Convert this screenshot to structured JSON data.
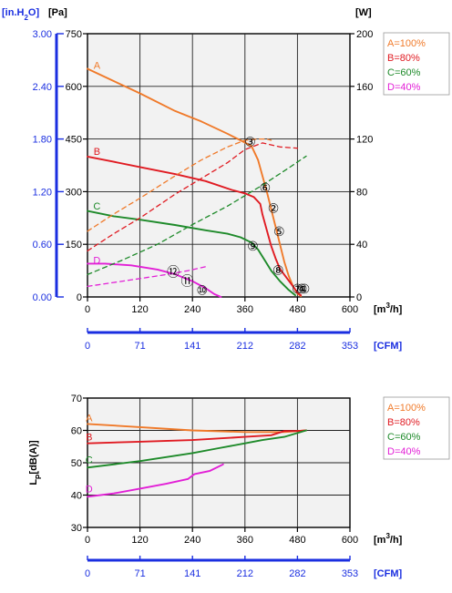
{
  "chart_data": [
    {
      "type": "line",
      "title": "",
      "left_axis_label": "[in.H2O]",
      "left_axis_unit": "[Pa]",
      "right_axis_label": "[W]",
      "x_unit": "[m3/h]",
      "x2_unit": "[CFM]",
      "xlim": [
        0,
        600
      ],
      "ylim_pa": [
        0,
        750
      ],
      "ylim_w": [
        0,
        200
      ],
      "ylim_inh2o": [
        0,
        3.0
      ],
      "x_ticks": [
        "0",
        "120",
        "240",
        "360",
        "480",
        "600"
      ],
      "pa_ticks": [
        "0",
        "150",
        "300",
        "450",
        "600",
        "750"
      ],
      "w_ticks": [
        "0",
        "40",
        "80",
        "120",
        "160",
        "200"
      ],
      "inh2o_ticks": [
        "0.00",
        "0.60",
        "1.20",
        "1.80",
        "2.40",
        "3.00"
      ],
      "cfm_ticks": [
        "0",
        "71",
        "141",
        "212",
        "282",
        "353"
      ],
      "legend": [
        "A=100%",
        "B=80%",
        "C=60%",
        "D=40%"
      ],
      "legend_position": "right",
      "grid": true,
      "series": [
        {
          "name": "A",
          "color": "#f07a2a",
          "kind": "pressure",
          "points": [
            [
              0,
              650
            ],
            [
              60,
              615
            ],
            [
              120,
              580
            ],
            [
              200,
              530
            ],
            [
              260,
              500
            ],
            [
              320,
              465
            ],
            [
              360,
              440
            ],
            [
              375,
              430
            ],
            [
              390,
              390
            ],
            [
              400,
              345
            ],
            [
              410,
              300
            ],
            [
              420,
              250
            ],
            [
              430,
              200
            ],
            [
              440,
              150
            ],
            [
              450,
              100
            ],
            [
              460,
              60
            ],
            [
              470,
              30
            ],
            [
              480,
              10
            ],
            [
              488,
              2
            ]
          ]
        },
        {
          "name": "B",
          "color": "#e01b22",
          "kind": "pressure",
          "points": [
            [
              0,
              400
            ],
            [
              60,
              385
            ],
            [
              120,
              370
            ],
            [
              200,
              350
            ],
            [
              270,
              330
            ],
            [
              330,
              305
            ],
            [
              360,
              295
            ],
            [
              380,
              285
            ],
            [
              395,
              265
            ],
            [
              400,
              235
            ],
            [
              410,
              190
            ],
            [
              420,
              145
            ],
            [
              430,
              110
            ],
            [
              440,
              80
            ],
            [
              455,
              55
            ],
            [
              470,
              30
            ],
            [
              480,
              12
            ],
            [
              488,
              5
            ]
          ]
        },
        {
          "name": "C",
          "color": "#1e8a2a",
          "kind": "pressure",
          "points": [
            [
              0,
              245
            ],
            [
              60,
              230
            ],
            [
              120,
              220
            ],
            [
              200,
              205
            ],
            [
              270,
              190
            ],
            [
              320,
              180
            ],
            [
              350,
              170
            ],
            [
              375,
              155
            ],
            [
              390,
              135
            ],
            [
              405,
              105
            ],
            [
              420,
              75
            ],
            [
              440,
              45
            ],
            [
              460,
              20
            ],
            [
              475,
              5
            ]
          ]
        },
        {
          "name": "D",
          "color": "#e21fd6",
          "kind": "pressure",
          "points": [
            [
              0,
              95
            ],
            [
              40,
              95
            ],
            [
              100,
              90
            ],
            [
              160,
              78
            ],
            [
              200,
              65
            ],
            [
              240,
              45
            ],
            [
              270,
              25
            ],
            [
              290,
              8
            ],
            [
              305,
              0
            ]
          ]
        },
        {
          "name": "A",
          "color": "#f07a2a",
          "kind": "power",
          "points": [
            [
              0,
              50
            ],
            [
              60,
              63
            ],
            [
              120,
              75
            ],
            [
              200,
              92
            ],
            [
              260,
              104
            ],
            [
              320,
              114
            ],
            [
              360,
              119
            ],
            [
              390,
              120
            ],
            [
              410,
              120
            ],
            [
              420,
              119
            ]
          ]
        },
        {
          "name": "B",
          "color": "#e01b22",
          "kind": "power",
          "points": [
            [
              0,
              35
            ],
            [
              60,
              48
            ],
            [
              120,
              60
            ],
            [
              200,
              78
            ],
            [
              270,
              92
            ],
            [
              320,
              102
            ],
            [
              360,
              112
            ],
            [
              400,
              117
            ],
            [
              440,
              114
            ],
            [
              480,
              113
            ]
          ]
        },
        {
          "name": "C",
          "color": "#1e8a2a",
          "kind": "power",
          "points": [
            [
              0,
              17
            ],
            [
              80,
              28
            ],
            [
              160,
              40
            ],
            [
              240,
              55
            ],
            [
              320,
              69
            ],
            [
              400,
              85
            ],
            [
              460,
              98
            ],
            [
              500,
              107
            ]
          ]
        },
        {
          "name": "D",
          "color": "#e21fd6",
          "kind": "power",
          "points": [
            [
              0,
              8
            ],
            [
              60,
              11
            ],
            [
              120,
              14
            ],
            [
              180,
              17
            ],
            [
              230,
              20
            ],
            [
              270,
              23
            ]
          ]
        }
      ],
      "curve_labels": [
        {
          "text": "A",
          "x": 30,
          "y": 660,
          "color": "#f07a2a"
        },
        {
          "text": "B",
          "x": 30,
          "y": 415,
          "color": "#e01b22"
        },
        {
          "text": "C",
          "x": 30,
          "y": 260,
          "color": "#1e8a2a"
        },
        {
          "text": "D",
          "x": 30,
          "y": 105,
          "color": "#e21fd6"
        }
      ],
      "point_markers": [
        {
          "text": "③",
          "x": 372,
          "y": 442
        },
        {
          "text": "⑥",
          "x": 406,
          "y": 312
        },
        {
          "text": "②",
          "x": 425,
          "y": 253
        },
        {
          "text": "⑤",
          "x": 438,
          "y": 187
        },
        {
          "text": "⑨",
          "x": 378,
          "y": 145
        },
        {
          "text": "⑧",
          "x": 436,
          "y": 76
        },
        {
          "text": "⑫",
          "x": 196,
          "y": 72
        },
        {
          "text": "⑪",
          "x": 228,
          "y": 45
        },
        {
          "text": "⑩",
          "x": 262,
          "y": 20
        },
        {
          "text": "⑦",
          "x": 480,
          "y": 24
        },
        {
          "text": "④",
          "x": 490,
          "y": 24
        },
        {
          "text": "①",
          "x": 496,
          "y": 24
        }
      ]
    },
    {
      "type": "line",
      "title": "",
      "ylabel": "LP[dB(A)]",
      "x_unit": "[m3/h]",
      "x2_unit": "[CFM]",
      "xlim": [
        0,
        600
      ],
      "ylim": [
        30,
        70
      ],
      "x_ticks": [
        "0",
        "120",
        "240",
        "360",
        "480",
        "600"
      ],
      "y_ticks": [
        "30",
        "40",
        "50",
        "60",
        "70"
      ],
      "cfm_ticks": [
        "0",
        "71",
        "141",
        "212",
        "282",
        "353"
      ],
      "legend": [
        "A=100%",
        "B=80%",
        "C=60%",
        "D=40%"
      ],
      "legend_position": "right",
      "grid": true,
      "series": [
        {
          "name": "A",
          "color": "#f07a2a",
          "points": [
            [
              0,
              62
            ],
            [
              120,
              61
            ],
            [
              240,
              60
            ],
            [
              360,
              59.5
            ],
            [
              450,
              59.5
            ],
            [
              500,
              60
            ]
          ]
        },
        {
          "name": "B",
          "color": "#e01b22",
          "points": [
            [
              0,
              56
            ],
            [
              120,
              56.5
            ],
            [
              240,
              57
            ],
            [
              360,
              58
            ],
            [
              420,
              58.5
            ],
            [
              450,
              59.8
            ],
            [
              480,
              59.8
            ],
            [
              500,
              60
            ]
          ]
        },
        {
          "name": "C",
          "color": "#1e8a2a",
          "points": [
            [
              0,
              48.5
            ],
            [
              120,
              50.5
            ],
            [
              240,
              53
            ],
            [
              300,
              54.5
            ],
            [
              360,
              56
            ],
            [
              400,
              57
            ],
            [
              450,
              58
            ],
            [
              500,
              60
            ]
          ]
        },
        {
          "name": "D",
          "color": "#e21fd6",
          "points": [
            [
              0,
              39.5
            ],
            [
              60,
              40.5
            ],
            [
              120,
              42
            ],
            [
              180,
              43.5
            ],
            [
              230,
              45
            ],
            [
              245,
              46.5
            ],
            [
              280,
              47.5
            ],
            [
              310,
              49.5
            ]
          ]
        }
      ],
      "curve_labels": [
        {
          "text": "A",
          "x": 12,
          "y": 64,
          "color": "#f07a2a"
        },
        {
          "text": "B",
          "x": 12,
          "y": 58,
          "color": "#e01b22"
        },
        {
          "text": "C",
          "x": 12,
          "y": 51,
          "color": "#1e8a2a"
        },
        {
          "text": "D",
          "x": 12,
          "y": 42,
          "color": "#e21fd6"
        }
      ]
    }
  ]
}
